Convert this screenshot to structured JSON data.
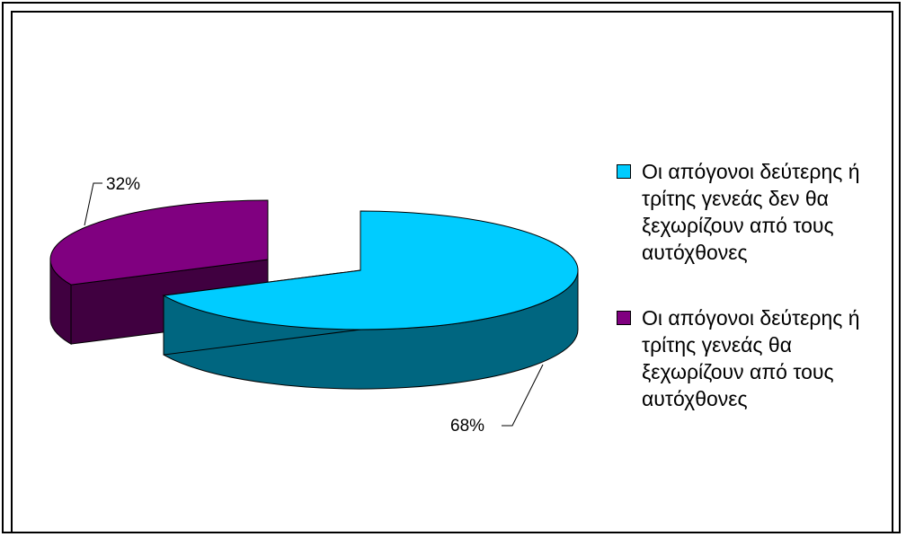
{
  "chart_data": {
    "type": "pie",
    "style": "3d-exploded",
    "slices": [
      {
        "label": "Οι απόγονοι δεύτερης ή τρίτης γενεάς δεν θα ξεχωρίζουν από τους αυτόχθονες",
        "value": 68,
        "display": "68%",
        "color": "#00ccff",
        "side_color": "#006680"
      },
      {
        "label": "Οι απόγονοι δεύτερης ή τρίτης γενεάς θα ξεχωρίζουν από τους αυτόχθονες",
        "value": 32,
        "display": "32%",
        "color": "#800080",
        "side_color": "#400040"
      }
    ],
    "legend_position": "right"
  }
}
